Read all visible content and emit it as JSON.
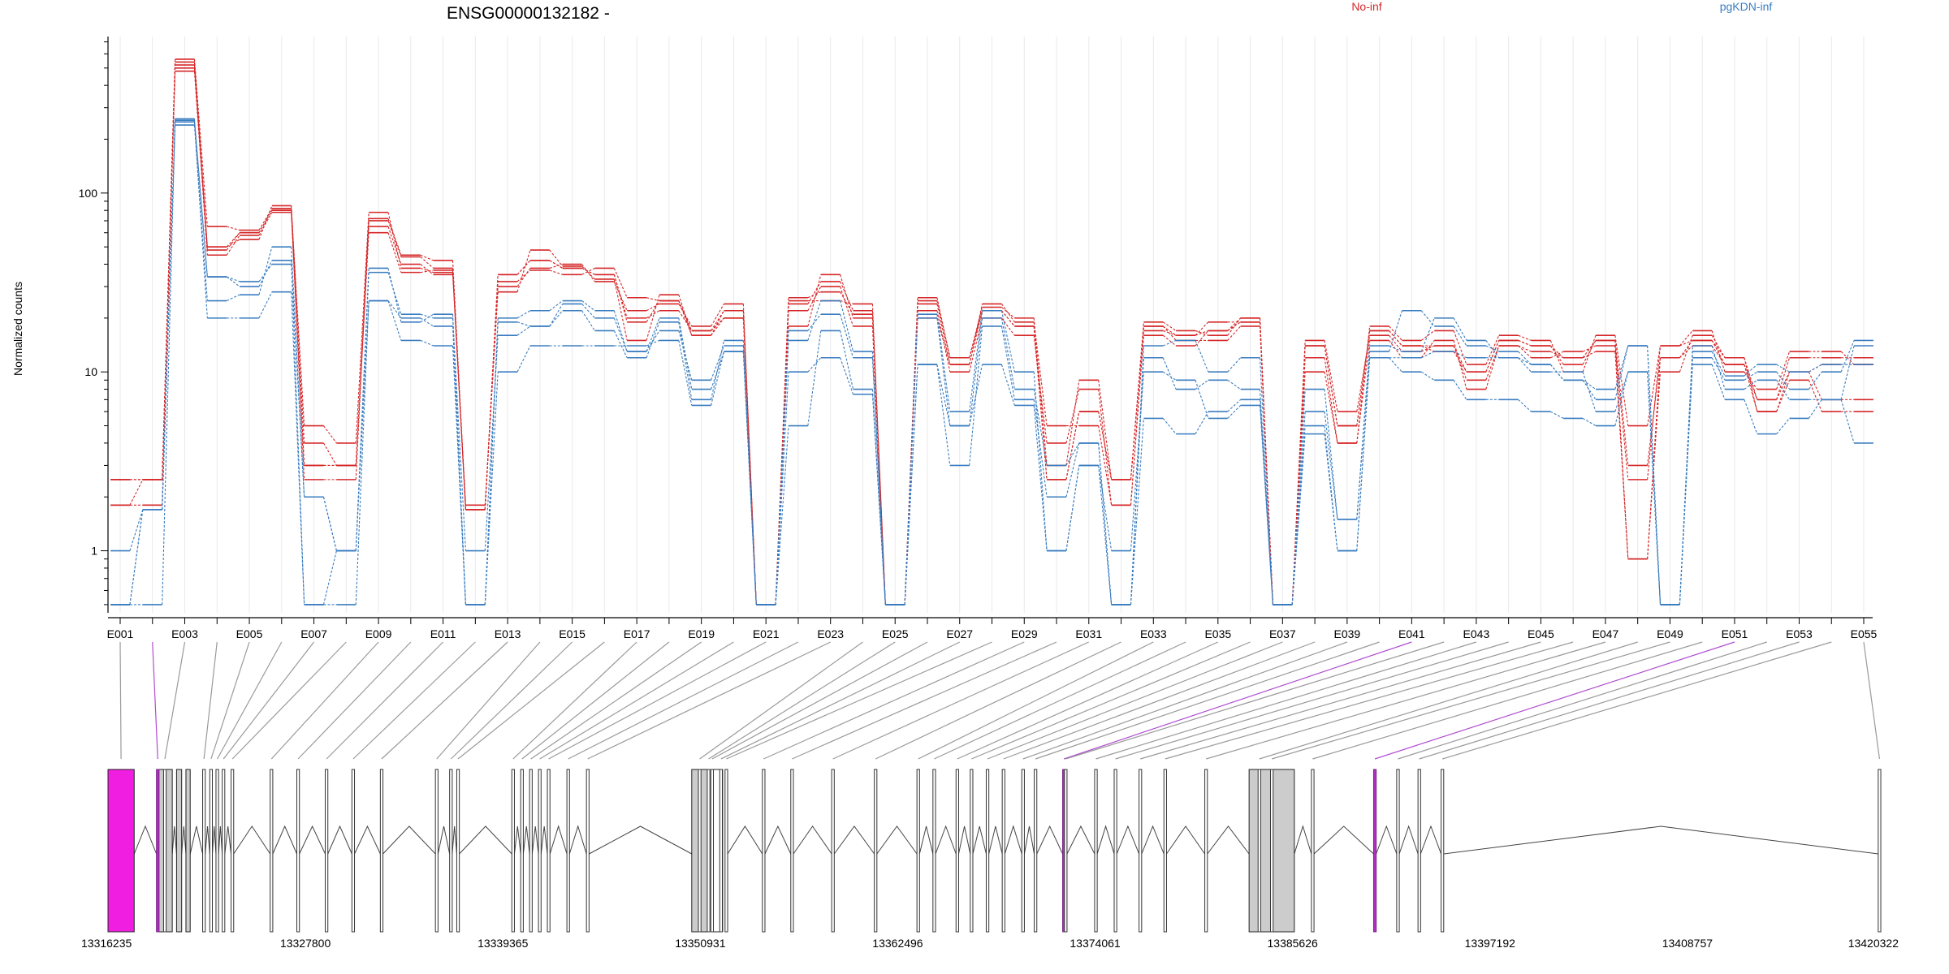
{
  "chart_data": {
    "type": "line",
    "title": "ENSG00000132182 -",
    "ylabel": "Normalized counts",
    "xlabel": "",
    "yscale": "log",
    "ylim": [
      0.45,
      750
    ],
    "yticks": [
      "1",
      "10",
      "100"
    ],
    "grid": "vertical per exon",
    "legend_placement": "top",
    "colors": {
      "No-inf": "#d62728",
      "pgKDN-inf": "#3a7dc0",
      "highlight": "#f01ee0",
      "exon_fill": "#cccccc"
    },
    "exons": [
      "E001",
      "E002",
      "E003",
      "E004",
      "E005",
      "E006",
      "E007",
      "E008",
      "E009",
      "E010",
      "E011",
      "E012",
      "E013",
      "E014",
      "E015",
      "E016",
      "E017",
      "E018",
      "E019",
      "E020",
      "E021",
      "E022",
      "E023",
      "E024",
      "E025",
      "E026",
      "E027",
      "E028",
      "E029",
      "E030",
      "E031",
      "E032",
      "E033",
      "E034",
      "E035",
      "E036",
      "E037",
      "E038",
      "E039",
      "E040",
      "E041",
      "E042",
      "E043",
      "E044",
      "E045",
      "E046",
      "E047",
      "E048",
      "E049",
      "E050",
      "E051",
      "E052",
      "E053",
      "E054",
      "E055"
    ],
    "exon_tick_labels": [
      "E001",
      "E003",
      "E005",
      "E007",
      "E009",
      "E011",
      "E013",
      "E015",
      "E017",
      "E019",
      "E021",
      "E023",
      "E025",
      "E027",
      "E029",
      "E031",
      "E033",
      "E035",
      "E037",
      "E039",
      "E041",
      "E043",
      "E045",
      "E047",
      "E049",
      "E051",
      "E053",
      "E055"
    ],
    "series": [
      {
        "name": "No-inf",
        "sample": 1,
        "values": [
          2.5,
          2.5,
          520,
          48,
          60,
          80,
          3,
          3,
          72,
          45,
          42,
          1.7,
          35,
          42,
          38,
          35,
          20,
          22,
          17,
          20,
          0.5,
          22,
          30,
          18,
          0.5,
          25,
          12,
          22,
          18,
          2.5,
          6,
          2.5,
          18,
          15,
          15,
          18,
          0.5,
          14,
          5,
          17,
          14,
          13,
          10,
          15,
          14,
          11,
          15,
          0.9,
          12,
          14,
          11,
          6,
          9,
          6,
          6
        ]
      },
      {
        "name": "No-inf",
        "sample": 2,
        "values": [
          1.8,
          2.5,
          540,
          50,
          55,
          85,
          4,
          3,
          65,
          40,
          35,
          1.7,
          32,
          37,
          35,
          38,
          26,
          25,
          16,
          22,
          0.5,
          24,
          32,
          22,
          0.5,
          22,
          10,
          20,
          16,
          4,
          8,
          1.8,
          16,
          14,
          17,
          20,
          0.5,
          12,
          4,
          15,
          12,
          15,
          8,
          14,
          12,
          13,
          14,
          2.5,
          14,
          15,
          12,
          7,
          12,
          12,
          12
        ]
      },
      {
        "name": "No-inf",
        "sample": 3,
        "values": [
          1.8,
          1.8,
          480,
          45,
          58,
          78,
          2.5,
          2.5,
          70,
          44,
          38,
          1.7,
          30,
          38,
          40,
          32,
          22,
          24,
          18,
          24,
          0.5,
          18,
          35,
          20,
          0.5,
          20,
          11,
          24,
          19,
          5,
          5,
          1.8,
          17,
          16,
          19,
          19,
          0.5,
          15,
          6,
          16,
          13,
          14,
          9,
          14,
          13,
          12,
          13,
          0.9,
          10,
          16,
          12,
          6,
          10,
          11,
          11
        ]
      },
      {
        "name": "No-inf",
        "sample": 4,
        "values": [
          2.5,
          2.5,
          560,
          65,
          62,
          82,
          5,
          4,
          78,
          38,
          36,
          1.8,
          28,
          48,
          39,
          33,
          15,
          27,
          16,
          20,
          0.5,
          25,
          25,
          24,
          0.5,
          26,
          12,
          23,
          20,
          3,
          9,
          2.5,
          19,
          17,
          16,
          20,
          0.5,
          10,
          4,
          18,
          15,
          17,
          11,
          16,
          15,
          10,
          16,
          5,
          14,
          17,
          10,
          8,
          13,
          13,
          11
        ]
      },
      {
        "name": "No-inf",
        "sample": 5,
        "values": [
          2.5,
          2.5,
          500,
          50,
          60,
          80,
          3,
          3,
          60,
          36,
          37,
          1.7,
          35,
          42,
          38,
          35,
          19,
          25,
          17,
          22,
          0.5,
          26,
          28,
          21,
          0.5,
          24,
          11,
          22,
          18,
          2.5,
          6,
          2.5,
          18,
          16,
          17,
          19,
          0.5,
          14,
          5,
          17,
          14,
          14,
          10,
          15,
          14,
          12,
          15,
          3,
          12,
          15,
          11,
          7,
          10,
          7,
          7
        ]
      },
      {
        "name": "pgKDN-inf",
        "sample": 1,
        "values": [
          1,
          1.7,
          260,
          34,
          30,
          42,
          0.5,
          1,
          36,
          21,
          20,
          1,
          16,
          18,
          22,
          17,
          12,
          19,
          7,
          15,
          0.5,
          17,
          21,
          12,
          0.5,
          21,
          6,
          22,
          10,
          1,
          3,
          1,
          10,
          9,
          5.5,
          6.5,
          0.5,
          6,
          1.5,
          14,
          13,
          20,
          15,
          12,
          11,
          9,
          8,
          14,
          0.5,
          13,
          9.5,
          11,
          10,
          11,
          11
        ]
      },
      {
        "name": "pgKDN-inf",
        "sample": 2,
        "values": [
          0.5,
          1.7,
          240,
          25,
          27,
          50,
          2,
          1,
          25,
          20,
          18,
          0.5,
          19,
          18,
          24,
          20,
          13,
          17,
          9,
          14,
          0.5,
          5,
          17,
          8,
          0.5,
          11,
          3,
          18,
          7,
          2,
          4,
          0.5,
          12,
          8,
          9,
          8,
          0.5,
          5,
          1,
          12,
          12,
          13,
          12,
          12,
          10,
          10,
          6,
          10,
          0.5,
          14,
          8,
          9,
          7,
          7,
          14
        ]
      },
      {
        "name": "pgKDN-inf",
        "sample": 3,
        "values": [
          0.5,
          1.7,
          250,
          20,
          20,
          28,
          0.5,
          0.5,
          25,
          15,
          14,
          0.5,
          10,
          14,
          14,
          14,
          14,
          15,
          6.5,
          13,
          0.5,
          10,
          12,
          7.5,
          0.5,
          11,
          5,
          11,
          6.5,
          1,
          3,
          0.5,
          5.5,
          4.5,
          6,
          7,
          0.5,
          4.5,
          1,
          12,
          10,
          9,
          7,
          7,
          6,
          5.5,
          5,
          10,
          0.5,
          11,
          7,
          4.5,
          5.5,
          7,
          4
        ]
      },
      {
        "name": "pgKDN-inf",
        "sample": 4,
        "values": [
          0.5,
          0.5,
          255,
          34,
          32,
          40,
          2,
          1,
          38,
          19,
          21,
          0.5,
          20,
          22,
          25,
          22,
          13,
          20,
          8,
          13,
          0.5,
          15,
          25,
          13,
          0.5,
          20,
          5,
          20,
          8,
          3,
          4,
          0.5,
          14,
          15,
          10,
          12,
          0.5,
          8,
          1.5,
          13,
          22,
          18,
          14,
          13,
          11,
          9,
          7,
          14,
          0.5,
          12,
          9,
          10,
          8,
          10,
          15
        ]
      }
    ],
    "genomic_axis": {
      "min": 13316235,
      "max": 13420322,
      "ticks": [
        "13316235",
        "13327800",
        "13339365",
        "13350931",
        "13362496",
        "13374061",
        "13385626",
        "13397192",
        "13408757",
        "13420322"
      ]
    },
    "gene_model": {
      "highlighted_exons": [
        "E002",
        "E041",
        "E051"
      ],
      "wide_exons": [
        {
          "start": 13316235,
          "end": 13317770,
          "kind": "highlighted"
        },
        {
          "start": 13319100,
          "end": 13320000,
          "kind": "gray"
        },
        {
          "start": 13320250,
          "end": 13320550,
          "kind": "gray"
        },
        {
          "start": 13320800,
          "end": 13321050,
          "kind": "gray"
        },
        {
          "start": 13350430,
          "end": 13351440,
          "kind": "gray"
        },
        {
          "start": 13351600,
          "end": 13352240,
          "kind": "white"
        },
        {
          "start": 13383080,
          "end": 13385730,
          "kind": "gray"
        }
      ]
    }
  }
}
